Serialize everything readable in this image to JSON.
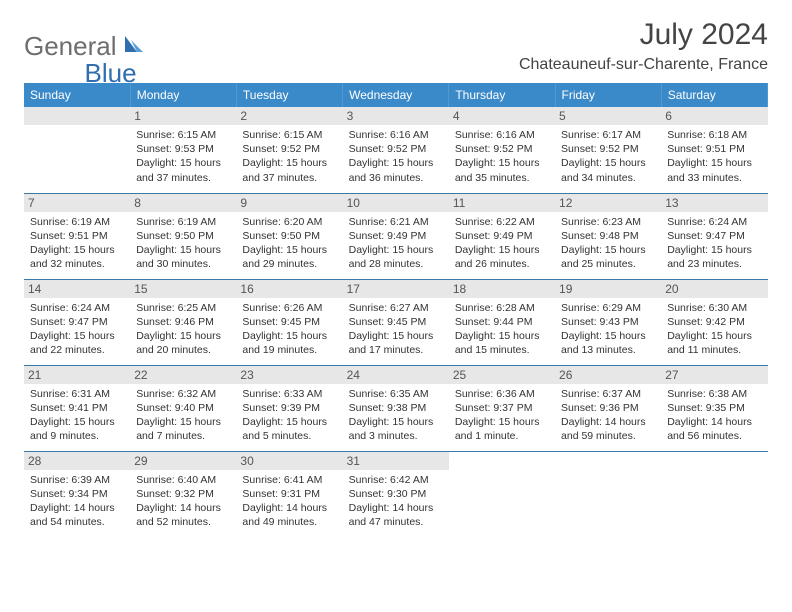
{
  "logo": {
    "text1": "General",
    "text2": "Blue"
  },
  "title": "July 2024",
  "location": "Chateauneuf-sur-Charente, France",
  "colors": {
    "header_bg": "#3a89c9",
    "header_text": "#ffffff",
    "daynum_bg": "#e7e7e7",
    "row_border": "#3a78a8",
    "body_text": "#333333",
    "logo_gray": "#6e6e6e",
    "logo_blue": "#2f6fb0"
  },
  "day_headers": [
    "Sunday",
    "Monday",
    "Tuesday",
    "Wednesday",
    "Thursday",
    "Friday",
    "Saturday"
  ],
  "weeks": [
    [
      null,
      {
        "n": "1",
        "sr": "6:15 AM",
        "ss": "9:53 PM",
        "dl": "15 hours and 37 minutes."
      },
      {
        "n": "2",
        "sr": "6:15 AM",
        "ss": "9:52 PM",
        "dl": "15 hours and 37 minutes."
      },
      {
        "n": "3",
        "sr": "6:16 AM",
        "ss": "9:52 PM",
        "dl": "15 hours and 36 minutes."
      },
      {
        "n": "4",
        "sr": "6:16 AM",
        "ss": "9:52 PM",
        "dl": "15 hours and 35 minutes."
      },
      {
        "n": "5",
        "sr": "6:17 AM",
        "ss": "9:52 PM",
        "dl": "15 hours and 34 minutes."
      },
      {
        "n": "6",
        "sr": "6:18 AM",
        "ss": "9:51 PM",
        "dl": "15 hours and 33 minutes."
      }
    ],
    [
      {
        "n": "7",
        "sr": "6:19 AM",
        "ss": "9:51 PM",
        "dl": "15 hours and 32 minutes."
      },
      {
        "n": "8",
        "sr": "6:19 AM",
        "ss": "9:50 PM",
        "dl": "15 hours and 30 minutes."
      },
      {
        "n": "9",
        "sr": "6:20 AM",
        "ss": "9:50 PM",
        "dl": "15 hours and 29 minutes."
      },
      {
        "n": "10",
        "sr": "6:21 AM",
        "ss": "9:49 PM",
        "dl": "15 hours and 28 minutes."
      },
      {
        "n": "11",
        "sr": "6:22 AM",
        "ss": "9:49 PM",
        "dl": "15 hours and 26 minutes."
      },
      {
        "n": "12",
        "sr": "6:23 AM",
        "ss": "9:48 PM",
        "dl": "15 hours and 25 minutes."
      },
      {
        "n": "13",
        "sr": "6:24 AM",
        "ss": "9:47 PM",
        "dl": "15 hours and 23 minutes."
      }
    ],
    [
      {
        "n": "14",
        "sr": "6:24 AM",
        "ss": "9:47 PM",
        "dl": "15 hours and 22 minutes."
      },
      {
        "n": "15",
        "sr": "6:25 AM",
        "ss": "9:46 PM",
        "dl": "15 hours and 20 minutes."
      },
      {
        "n": "16",
        "sr": "6:26 AM",
        "ss": "9:45 PM",
        "dl": "15 hours and 19 minutes."
      },
      {
        "n": "17",
        "sr": "6:27 AM",
        "ss": "9:45 PM",
        "dl": "15 hours and 17 minutes."
      },
      {
        "n": "18",
        "sr": "6:28 AM",
        "ss": "9:44 PM",
        "dl": "15 hours and 15 minutes."
      },
      {
        "n": "19",
        "sr": "6:29 AM",
        "ss": "9:43 PM",
        "dl": "15 hours and 13 minutes."
      },
      {
        "n": "20",
        "sr": "6:30 AM",
        "ss": "9:42 PM",
        "dl": "15 hours and 11 minutes."
      }
    ],
    [
      {
        "n": "21",
        "sr": "6:31 AM",
        "ss": "9:41 PM",
        "dl": "15 hours and 9 minutes."
      },
      {
        "n": "22",
        "sr": "6:32 AM",
        "ss": "9:40 PM",
        "dl": "15 hours and 7 minutes."
      },
      {
        "n": "23",
        "sr": "6:33 AM",
        "ss": "9:39 PM",
        "dl": "15 hours and 5 minutes."
      },
      {
        "n": "24",
        "sr": "6:35 AM",
        "ss": "9:38 PM",
        "dl": "15 hours and 3 minutes."
      },
      {
        "n": "25",
        "sr": "6:36 AM",
        "ss": "9:37 PM",
        "dl": "15 hours and 1 minute."
      },
      {
        "n": "26",
        "sr": "6:37 AM",
        "ss": "9:36 PM",
        "dl": "14 hours and 59 minutes."
      },
      {
        "n": "27",
        "sr": "6:38 AM",
        "ss": "9:35 PM",
        "dl": "14 hours and 56 minutes."
      }
    ],
    [
      {
        "n": "28",
        "sr": "6:39 AM",
        "ss": "9:34 PM",
        "dl": "14 hours and 54 minutes."
      },
      {
        "n": "29",
        "sr": "6:40 AM",
        "ss": "9:32 PM",
        "dl": "14 hours and 52 minutes."
      },
      {
        "n": "30",
        "sr": "6:41 AM",
        "ss": "9:31 PM",
        "dl": "14 hours and 49 minutes."
      },
      {
        "n": "31",
        "sr": "6:42 AM",
        "ss": "9:30 PM",
        "dl": "14 hours and 47 minutes."
      },
      null,
      null,
      null
    ]
  ],
  "labels": {
    "sunrise": "Sunrise:",
    "sunset": "Sunset:",
    "daylight": "Daylight:"
  }
}
